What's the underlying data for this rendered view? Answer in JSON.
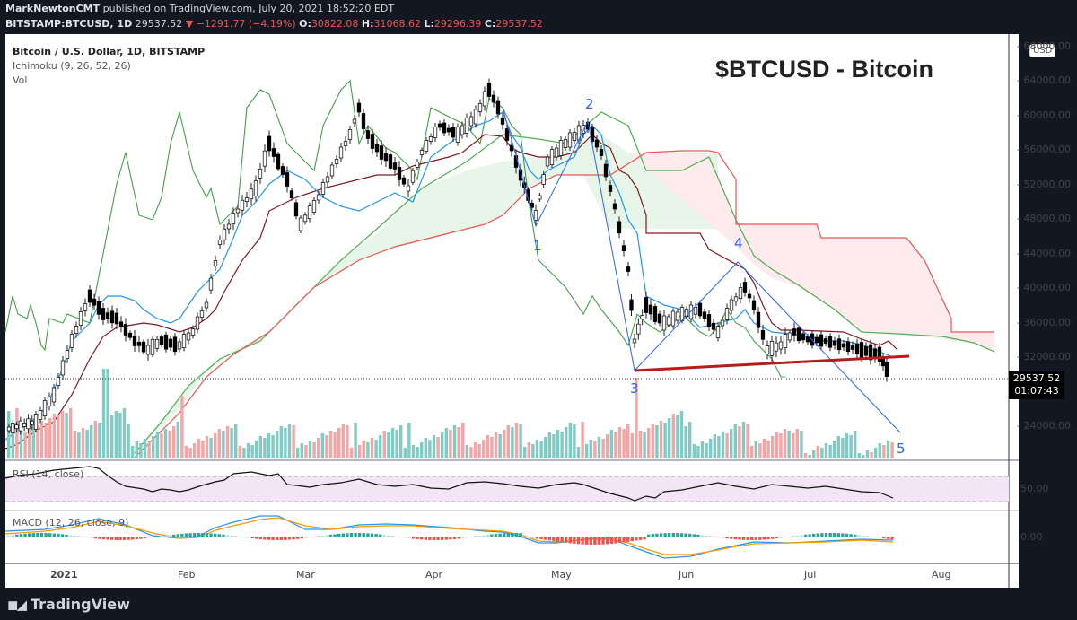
{
  "header": {
    "publisher": "MarkNewtonCMT",
    "published_text": "published on TradingView.com, July 20, 2021 18:52:20 EDT",
    "symbol": "BITSTAMP:BTCUSD, 1D",
    "last": "29537.52",
    "change": "−1291.77 (−4.19%)",
    "o_label": "O:",
    "o": "30822.08",
    "h_label": "H:",
    "h": "31068.62",
    "l_label": "L:",
    "l": "29296.39",
    "c_label": "C:",
    "c": "29537.52"
  },
  "legend": {
    "title": "Bitcoin / U.S. Dollar, 1D, BITSTAMP",
    "ichimoku": "Ichimoku (9, 26, 52, 26)",
    "vol": "Vol"
  },
  "overlay_title": "$BTCUSD - Bitcoin",
  "price_axis": {
    "currency": "USD",
    "ticks": [
      "68000.00",
      "64000.00",
      "60000.00",
      "56000.00",
      "52000.00",
      "48000.00",
      "44000.00",
      "40000.00",
      "36000.00",
      "32000.00",
      "24000.00"
    ],
    "last_price": "29537.52",
    "countdown": "01:07:43"
  },
  "rsi": {
    "label": "RSI (14, close)",
    "tick": "50.00"
  },
  "macd": {
    "label": "MACD (12, 26, close, 9)",
    "tick": "0.00"
  },
  "time_axis": [
    "2021",
    "Feb",
    "Mar",
    "Apr",
    "May",
    "Jun",
    "Jul",
    "Aug"
  ],
  "wave_labels": [
    "1",
    "2",
    "3",
    "4",
    "5"
  ],
  "footer": {
    "brand": "TradingView"
  },
  "colors": {
    "up": "#ffffff",
    "down": "#000000",
    "tenkan": "#2196f3",
    "kijun": "#801922",
    "chikou": "#43a047",
    "span_a": "#4caf50",
    "span_b": "#ef5350",
    "cloud_bull": "#e8f5e9",
    "cloud_bear": "#ffebee",
    "trendline": "#b71c1c",
    "wave": "#2962ff"
  },
  "chart_data": {
    "type": "candlestick",
    "title": "$BTCUSD - Bitcoin",
    "subtitle": "Bitcoin / U.S. Dollar, 1D, BITSTAMP",
    "indicators": [
      "Ichimoku (9, 26, 52, 26)",
      "Vol",
      "RSI (14, close)",
      "MACD (12, 26, close, 9)"
    ],
    "x": [
      "2021-01",
      "2021-02",
      "2021-03",
      "2021-04",
      "2021-05",
      "2021-06",
      "2021-07",
      "2021-08"
    ],
    "ylim": [
      22000,
      68000
    ],
    "monthly_approx_close": [
      {
        "date": "2020-12-28",
        "close": 27000
      },
      {
        "date": "2021-01-08",
        "close": 40500
      },
      {
        "date": "2021-01-22",
        "close": 32000
      },
      {
        "date": "2021-02-21",
        "close": 57000
      },
      {
        "date": "2021-03-13",
        "close": 61000
      },
      {
        "date": "2021-03-25",
        "close": 52500
      },
      {
        "date": "2021-04-14",
        "close": 63500
      },
      {
        "date": "2021-04-25",
        "close": 49000
      },
      {
        "date": "2021-05-09",
        "close": 58000
      },
      {
        "date": "2021-05-19",
        "close": 37000
      },
      {
        "date": "2021-06-14",
        "close": 40500
      },
      {
        "date": "2021-06-22",
        "close": 32500
      },
      {
        "date": "2021-07-06",
        "close": 34000
      },
      {
        "date": "2021-07-20",
        "close": 29537.52
      }
    ],
    "last": {
      "open": 30822.08,
      "high": 31068.62,
      "low": 29296.39,
      "close": 29537.52,
      "change": -1291.77,
      "change_pct": -4.19
    },
    "annotations": [
      {
        "label": "1",
        "date": "2021-04-25",
        "price": 47000
      },
      {
        "label": "2",
        "date": "2021-05-08",
        "price": 59500
      },
      {
        "label": "3",
        "date": "2021-05-19",
        "price": 30000
      },
      {
        "label": "4",
        "date": "2021-06-14",
        "price": 43000
      },
      {
        "label": "5",
        "date": "2021-07-22",
        "price": 23500
      }
    ],
    "trendline": {
      "from": {
        "date": "2021-05-19",
        "price": 30000
      },
      "to": {
        "date": "2021-07-22",
        "price": 32000
      },
      "color": "#b71c1c"
    },
    "rsi_range": [
      30,
      70
    ],
    "rsi_last": 38,
    "grid": false,
    "legend_position": "top-left"
  }
}
